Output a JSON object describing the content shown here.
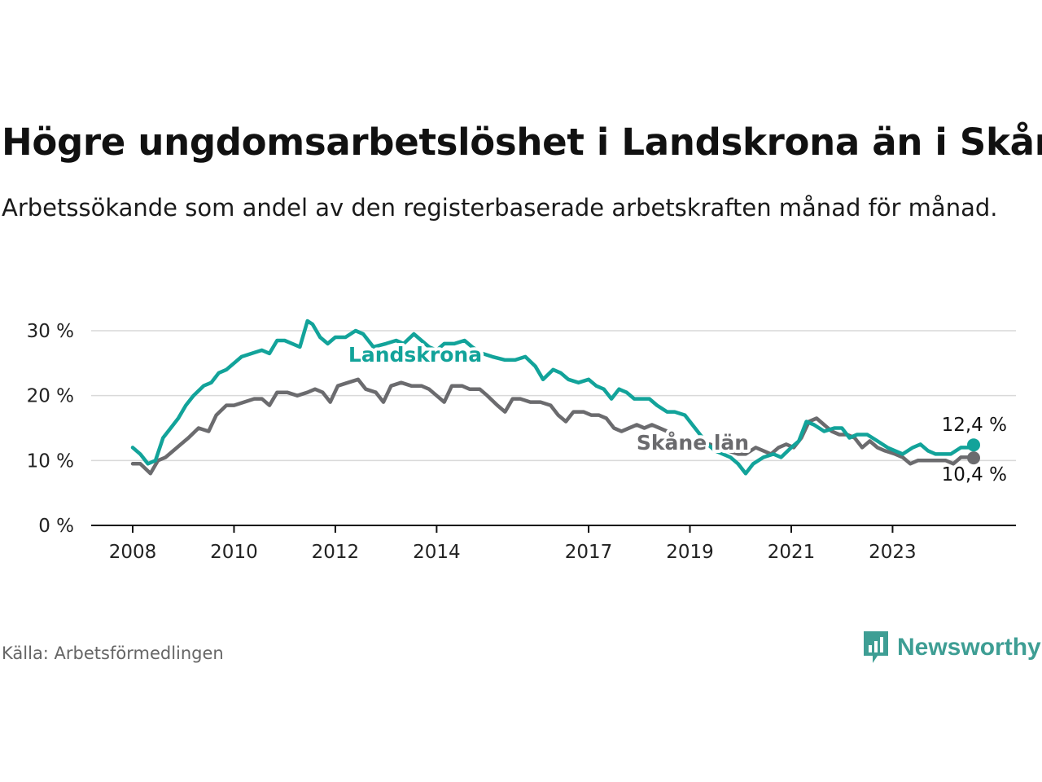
{
  "title": "Högre ungdomsarbetslöshet i Landskrona än i Skåne",
  "subtitle": "Arbetssökande som andel av den registerbaserade arbetskraften månad för månad.",
  "source": "Källa: Arbetsförmedlingen",
  "brand": {
    "name": "Newsworthy",
    "icon": "newsworthy-logo-icon",
    "color": "#3e9e94"
  },
  "colors": {
    "landskrona": "#12a39a",
    "skane": "#6b6b6e",
    "grid": "#d9d9d9",
    "axis": "#111111"
  },
  "chart_data": {
    "type": "line",
    "title": "Högre ungdomsarbetslöshet i Landskrona än i Skåne",
    "xlabel": "",
    "ylabel": "",
    "xlim": [
      2008,
      2024.7
    ],
    "ylim": [
      0,
      30
    ],
    "y_ticks": [
      0,
      10,
      20,
      30
    ],
    "y_tick_labels": [
      "0 %",
      "10 %",
      "20 %",
      "30 %"
    ],
    "x_ticks": [
      2008,
      2010,
      2012,
      2014,
      2017,
      2019,
      2021,
      2023
    ],
    "x_tick_labels": [
      "2008",
      "2010",
      "2012",
      "2014",
      "2017",
      "2019",
      "2021",
      "2023"
    ],
    "grid": true,
    "series": [
      {
        "name": "Landskrona",
        "label": "Landskrona",
        "end_label": "12,4 %",
        "color": "#12a39a",
        "points": [
          [
            2008.0,
            12.0
          ],
          [
            2008.15,
            11.0
          ],
          [
            2008.3,
            9.5
          ],
          [
            2008.45,
            10.0
          ],
          [
            2008.6,
            13.5
          ],
          [
            2008.75,
            15.0
          ],
          [
            2008.9,
            16.5
          ],
          [
            2009.05,
            18.5
          ],
          [
            2009.2,
            20.0
          ],
          [
            2009.4,
            21.5
          ],
          [
            2009.55,
            22.0
          ],
          [
            2009.7,
            23.5
          ],
          [
            2009.85,
            24.0
          ],
          [
            2010.0,
            25.0
          ],
          [
            2010.15,
            26.0
          ],
          [
            2010.35,
            26.5
          ],
          [
            2010.55,
            27.0
          ],
          [
            2010.7,
            26.5
          ],
          [
            2010.85,
            28.5
          ],
          [
            2011.0,
            28.5
          ],
          [
            2011.15,
            28.0
          ],
          [
            2011.3,
            27.5
          ],
          [
            2011.45,
            31.5
          ],
          [
            2011.55,
            31.0
          ],
          [
            2011.7,
            29.0
          ],
          [
            2011.85,
            28.0
          ],
          [
            2012.0,
            29.0
          ],
          [
            2012.2,
            29.0
          ],
          [
            2012.4,
            30.0
          ],
          [
            2012.55,
            29.5
          ],
          [
            2012.75,
            27.5
          ],
          [
            2013.0,
            28.0
          ],
          [
            2013.2,
            28.5
          ],
          [
            2013.35,
            28.0
          ],
          [
            2013.55,
            29.5
          ],
          [
            2013.7,
            28.5
          ],
          [
            2013.85,
            27.5
          ],
          [
            2014.0,
            27.0
          ],
          [
            2014.15,
            28.0
          ],
          [
            2014.35,
            28.0
          ],
          [
            2014.55,
            28.5
          ],
          [
            2014.7,
            27.5
          ],
          [
            2014.9,
            26.5
          ],
          [
            2015.1,
            26.0
          ],
          [
            2015.35,
            25.5
          ],
          [
            2015.55,
            25.5
          ],
          [
            2015.75,
            26.0
          ],
          [
            2015.95,
            24.5
          ],
          [
            2016.1,
            22.5
          ],
          [
            2016.3,
            24.0
          ],
          [
            2016.45,
            23.5
          ],
          [
            2016.6,
            22.5
          ],
          [
            2016.8,
            22.0
          ],
          [
            2017.0,
            22.5
          ],
          [
            2017.15,
            21.5
          ],
          [
            2017.3,
            21.0
          ],
          [
            2017.45,
            19.5
          ],
          [
            2017.6,
            21.0
          ],
          [
            2017.75,
            20.5
          ],
          [
            2017.9,
            19.5
          ],
          [
            2018.05,
            19.5
          ],
          [
            2018.2,
            19.5
          ],
          [
            2018.35,
            18.5
          ],
          [
            2018.55,
            17.5
          ],
          [
            2018.7,
            17.5
          ],
          [
            2018.9,
            17.0
          ],
          [
            2019.05,
            15.5
          ],
          [
            2019.2,
            14.0
          ],
          [
            2019.35,
            12.5
          ],
          [
            2019.5,
            11.5
          ],
          [
            2019.65,
            11.0
          ],
          [
            2019.8,
            10.5
          ],
          [
            2019.95,
            9.5
          ],
          [
            2020.1,
            8.0
          ],
          [
            2020.25,
            9.5
          ],
          [
            2020.45,
            10.5
          ],
          [
            2020.65,
            11.0
          ],
          [
            2020.8,
            10.5
          ],
          [
            2021.0,
            12.0
          ],
          [
            2021.15,
            13.0
          ],
          [
            2021.3,
            16.0
          ],
          [
            2021.45,
            15.5
          ],
          [
            2021.65,
            14.5
          ],
          [
            2021.85,
            15.0
          ],
          [
            2022.0,
            15.0
          ],
          [
            2022.15,
            13.5
          ],
          [
            2022.3,
            14.0
          ],
          [
            2022.5,
            14.0
          ],
          [
            2022.7,
            13.0
          ],
          [
            2022.9,
            12.0
          ],
          [
            2023.05,
            11.5
          ],
          [
            2023.2,
            11.0
          ],
          [
            2023.4,
            12.0
          ],
          [
            2023.55,
            12.5
          ],
          [
            2023.7,
            11.5
          ],
          [
            2023.85,
            11.0
          ],
          [
            2024.0,
            11.0
          ],
          [
            2024.15,
            11.0
          ],
          [
            2024.35,
            12.0
          ],
          [
            2024.5,
            12.0
          ],
          [
            2024.6,
            12.4
          ]
        ]
      },
      {
        "name": "Skåne län",
        "label": "Skåne län",
        "end_label": "10,4 %",
        "color": "#6b6b6e",
        "points": [
          [
            2008.0,
            9.5
          ],
          [
            2008.15,
            9.5
          ],
          [
            2008.35,
            8.0
          ],
          [
            2008.5,
            10.0
          ],
          [
            2008.65,
            10.5
          ],
          [
            2008.8,
            11.5
          ],
          [
            2008.95,
            12.5
          ],
          [
            2009.1,
            13.5
          ],
          [
            2009.3,
            15.0
          ],
          [
            2009.5,
            14.5
          ],
          [
            2009.65,
            17.0
          ],
          [
            2009.85,
            18.5
          ],
          [
            2010.0,
            18.5
          ],
          [
            2010.2,
            19.0
          ],
          [
            2010.4,
            19.5
          ],
          [
            2010.55,
            19.5
          ],
          [
            2010.7,
            18.5
          ],
          [
            2010.85,
            20.5
          ],
          [
            2011.05,
            20.5
          ],
          [
            2011.25,
            20.0
          ],
          [
            2011.45,
            20.5
          ],
          [
            2011.6,
            21.0
          ],
          [
            2011.75,
            20.5
          ],
          [
            2011.9,
            19.0
          ],
          [
            2012.05,
            21.5
          ],
          [
            2012.25,
            22.0
          ],
          [
            2012.45,
            22.5
          ],
          [
            2012.6,
            21.0
          ],
          [
            2012.8,
            20.5
          ],
          [
            2012.95,
            19.0
          ],
          [
            2013.1,
            21.5
          ],
          [
            2013.3,
            22.0
          ],
          [
            2013.5,
            21.5
          ],
          [
            2013.7,
            21.5
          ],
          [
            2013.85,
            21.0
          ],
          [
            2014.0,
            20.0
          ],
          [
            2014.15,
            19.0
          ],
          [
            2014.3,
            21.5
          ],
          [
            2014.5,
            21.5
          ],
          [
            2014.65,
            21.0
          ],
          [
            2014.85,
            21.0
          ],
          [
            2015.0,
            20.0
          ],
          [
            2015.2,
            18.5
          ],
          [
            2015.35,
            17.5
          ],
          [
            2015.5,
            19.5
          ],
          [
            2015.65,
            19.5
          ],
          [
            2015.85,
            19.0
          ],
          [
            2016.05,
            19.0
          ],
          [
            2016.25,
            18.5
          ],
          [
            2016.4,
            17.0
          ],
          [
            2016.55,
            16.0
          ],
          [
            2016.7,
            17.5
          ],
          [
            2016.9,
            17.5
          ],
          [
            2017.05,
            17.0
          ],
          [
            2017.2,
            17.0
          ],
          [
            2017.35,
            16.5
          ],
          [
            2017.5,
            15.0
          ],
          [
            2017.65,
            14.5
          ],
          [
            2017.8,
            15.0
          ],
          [
            2017.95,
            15.5
          ],
          [
            2018.1,
            15.0
          ],
          [
            2018.25,
            15.5
          ],
          [
            2018.4,
            15.0
          ],
          [
            2018.55,
            14.5
          ],
          [
            2018.7,
            13.5
          ],
          [
            2018.85,
            13.0
          ],
          [
            2019.0,
            13.0
          ],
          [
            2019.2,
            12.5
          ],
          [
            2019.4,
            12.5
          ],
          [
            2019.55,
            12.0
          ],
          [
            2019.75,
            11.5
          ],
          [
            2019.95,
            11.0
          ],
          [
            2020.1,
            11.0
          ],
          [
            2020.3,
            12.0
          ],
          [
            2020.45,
            11.5
          ],
          [
            2020.6,
            11.0
          ],
          [
            2020.75,
            12.0
          ],
          [
            2020.9,
            12.5
          ],
          [
            2021.05,
            12.0
          ],
          [
            2021.2,
            13.5
          ],
          [
            2021.35,
            16.0
          ],
          [
            2021.5,
            16.5
          ],
          [
            2021.65,
            15.5
          ],
          [
            2021.8,
            14.5
          ],
          [
            2021.95,
            14.0
          ],
          [
            2022.1,
            14.0
          ],
          [
            2022.25,
            13.5
          ],
          [
            2022.4,
            12.0
          ],
          [
            2022.55,
            13.0
          ],
          [
            2022.7,
            12.0
          ],
          [
            2022.85,
            11.5
          ],
          [
            2023.05,
            11.0
          ],
          [
            2023.2,
            10.5
          ],
          [
            2023.35,
            9.5
          ],
          [
            2023.5,
            10.0
          ],
          [
            2023.7,
            10.0
          ],
          [
            2023.9,
            10.0
          ],
          [
            2024.05,
            10.0
          ],
          [
            2024.2,
            9.5
          ],
          [
            2024.35,
            10.5
          ],
          [
            2024.5,
            10.5
          ],
          [
            2024.6,
            10.4
          ]
        ]
      }
    ]
  }
}
